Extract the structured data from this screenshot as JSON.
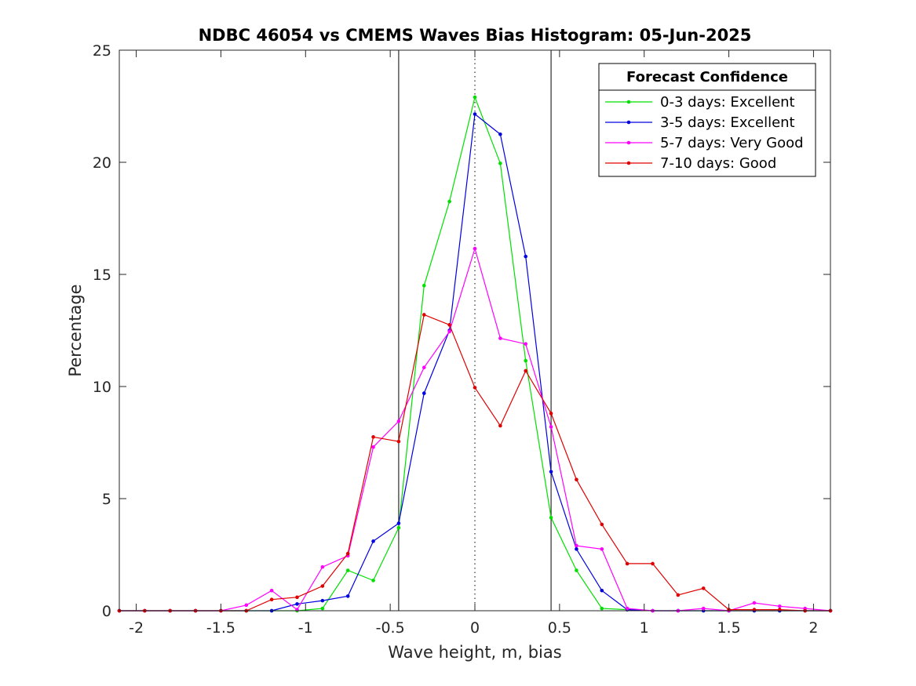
{
  "chart_data": {
    "type": "line",
    "title": "NDBC 46054 vs CMEMS Waves Bias Histogram: 05-Jun-2025",
    "xlabel": "Wave height, m, bias",
    "ylabel": "Percentage",
    "xlim": [
      -2.1,
      2.1
    ],
    "ylim": [
      0,
      25
    ],
    "xticks": [
      -2,
      -1.5,
      -1,
      -0.5,
      0,
      0.5,
      1,
      1.5,
      2
    ],
    "xtick_labels": [
      "-2",
      "-1.5",
      "-1",
      "-0.5",
      "0",
      "0.5",
      "1",
      "1.5",
      "2"
    ],
    "yticks": [
      0,
      5,
      10,
      15,
      20,
      25
    ],
    "ytick_labels": [
      "0",
      "5",
      "10",
      "15",
      "20",
      "25"
    ],
    "grid": false,
    "reference_lines": [
      {
        "x": -0.45,
        "style": "solid"
      },
      {
        "x": 0,
        "style": "dotted"
      },
      {
        "x": 0.45,
        "style": "solid"
      }
    ],
    "legend": {
      "title": "Forecast Confidence",
      "placement": "top-right"
    },
    "x": [
      -2.1,
      -1.95,
      -1.8,
      -1.65,
      -1.5,
      -1.35,
      -1.2,
      -1.05,
      -0.9,
      -0.75,
      -0.6,
      -0.45,
      -0.3,
      -0.15,
      0,
      0.15,
      0.3,
      0.45,
      0.6,
      0.75,
      0.9,
      1.05,
      1.2,
      1.35,
      1.5,
      1.65,
      1.8,
      1.95,
      2.1
    ],
    "series": [
      {
        "name": "0-3 days: Excellent",
        "color": "#00e000",
        "values": [
          0,
          0,
          0,
          0,
          0,
          0,
          0,
          0,
          0.1,
          1.8,
          1.35,
          3.7,
          14.5,
          18.25,
          22.9,
          19.95,
          11.15,
          4.15,
          1.8,
          0.1,
          0.05,
          0,
          0,
          0,
          0,
          0,
          0,
          0,
          0
        ]
      },
      {
        "name": "3-5 days: Excellent",
        "color": "#0000e0",
        "values": [
          0,
          0,
          0,
          0,
          0,
          0,
          0,
          0.3,
          0.45,
          0.65,
          3.1,
          3.9,
          9.7,
          12.5,
          22.15,
          21.25,
          15.8,
          6.2,
          2.75,
          0.9,
          0.05,
          0,
          0,
          0,
          0,
          0,
          0,
          0,
          0
        ]
      },
      {
        "name": "5-7 days: Very Good",
        "color": "#ff00ff",
        "values": [
          0,
          0,
          0,
          0,
          0,
          0.25,
          0.9,
          0.05,
          1.95,
          2.45,
          7.3,
          8.45,
          10.85,
          12.45,
          16.15,
          12.15,
          11.9,
          8.2,
          2.9,
          2.75,
          0.1,
          0,
          0,
          0.1,
          0,
          0.35,
          0.2,
          0.1,
          0
        ]
      },
      {
        "name": "7-10 days: Good",
        "color": "#e00000",
        "values": [
          0,
          0,
          0,
          0,
          0,
          0,
          0.5,
          0.6,
          1.1,
          2.55,
          7.75,
          7.55,
          13.2,
          12.75,
          9.95,
          8.25,
          10.7,
          8.8,
          5.85,
          3.85,
          2.1,
          2.1,
          0.7,
          1.0,
          0.05,
          0.05,
          0.05,
          0,
          0
        ]
      }
    ]
  }
}
